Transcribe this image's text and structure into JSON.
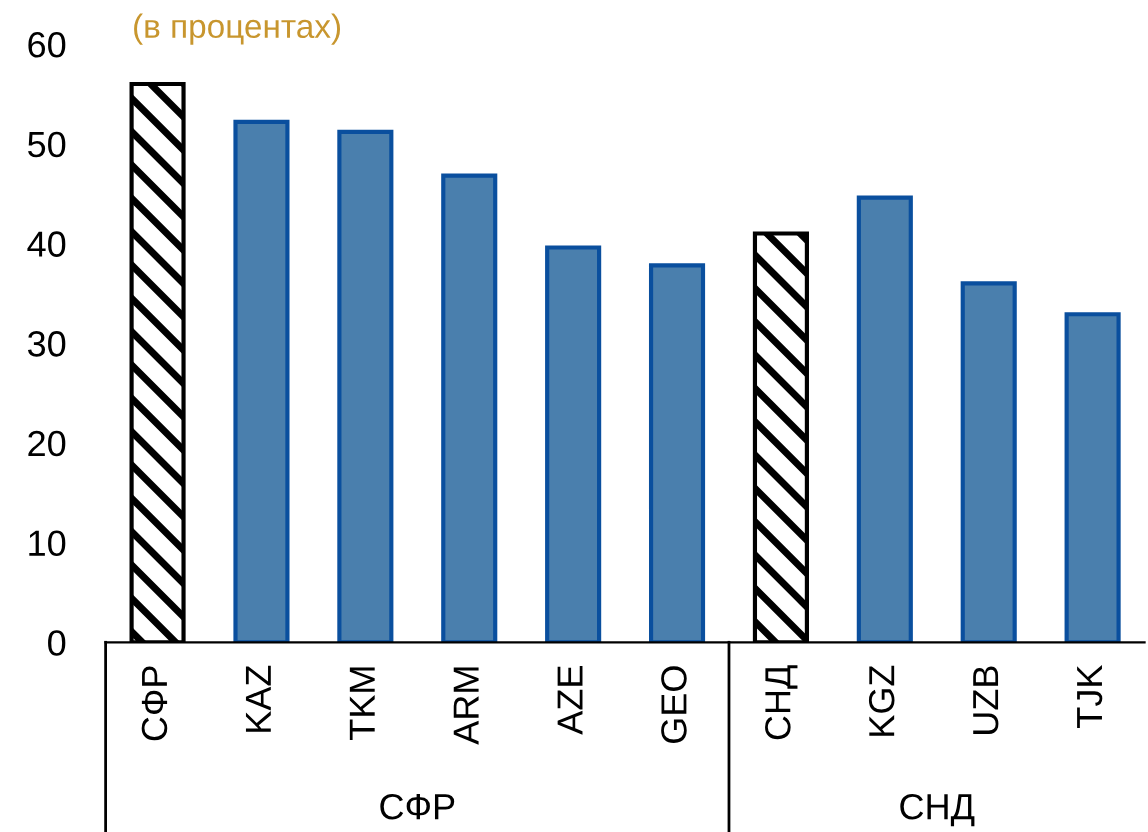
{
  "chart_data": {
    "type": "bar",
    "subtitle": "(в процентах)",
    "categories": [
      "СФР",
      "KAZ",
      "TKM",
      "ARM",
      "AZE",
      "GEO",
      "СНД",
      "KGZ",
      "UZB",
      "TJK"
    ],
    "values": [
      56,
      52.2,
      51.2,
      46.8,
      39.6,
      37.8,
      41,
      44.6,
      36,
      32.9
    ],
    "colors": [
      "#000000",
      "#4a7fad",
      "#4a7fad",
      "#4a7fad",
      "#4a7fad",
      "#4a7fad",
      "#000000",
      "#4a7fad",
      "#4a7fad",
      "#4a7fad"
    ],
    "annotations": [
      "СФР",
      "СНД"
    ],
    "ylim": [
      0,
      60
    ],
    "yticks": [
      0,
      10,
      20,
      30,
      40,
      50,
      60
    ],
    "grid": false,
    "legend": false
  }
}
